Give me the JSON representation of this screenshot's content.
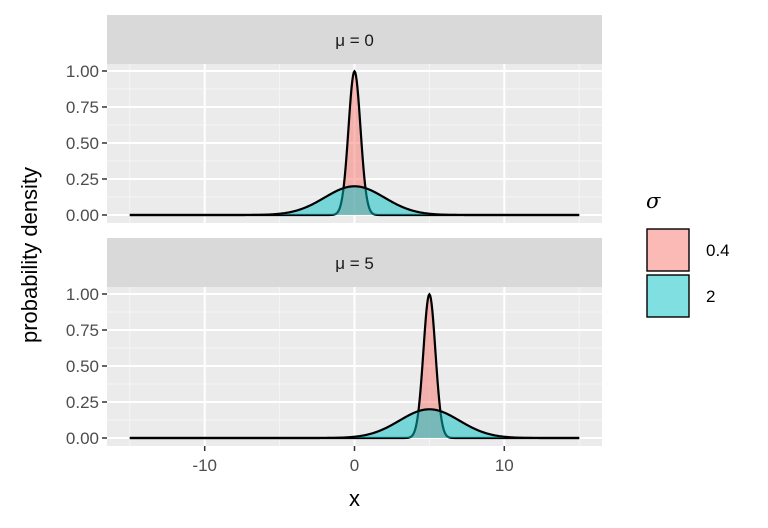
{
  "chart_data": {
    "type": "area",
    "title": "",
    "xlabel": "x",
    "ylabel": "probability density",
    "xlim": [
      -15,
      15
    ],
    "ylim": [
      0,
      1
    ],
    "x_ticks": [
      "-10",
      "0",
      "10"
    ],
    "y_ticks": [
      "0.00",
      "0.25",
      "0.50",
      "0.75",
      "1.00"
    ],
    "grid": true,
    "legend": {
      "title": "σ",
      "position": "right",
      "entries": [
        {
          "label": "0.4",
          "sigma": 0.4,
          "color": "#f8766d"
        },
        {
          "label": "2",
          "sigma": 2,
          "color": "#00bfc4"
        }
      ]
    },
    "facets": [
      {
        "label": "μ = 0",
        "mu": 0
      },
      {
        "label": "μ = 5",
        "mu": 5
      }
    ],
    "series": [
      {
        "name": "0.4",
        "distribution": "normal",
        "sigma": 0.4
      },
      {
        "name": "2",
        "distribution": "normal",
        "sigma": 2
      }
    ],
    "x_range": [
      -15,
      15
    ]
  }
}
